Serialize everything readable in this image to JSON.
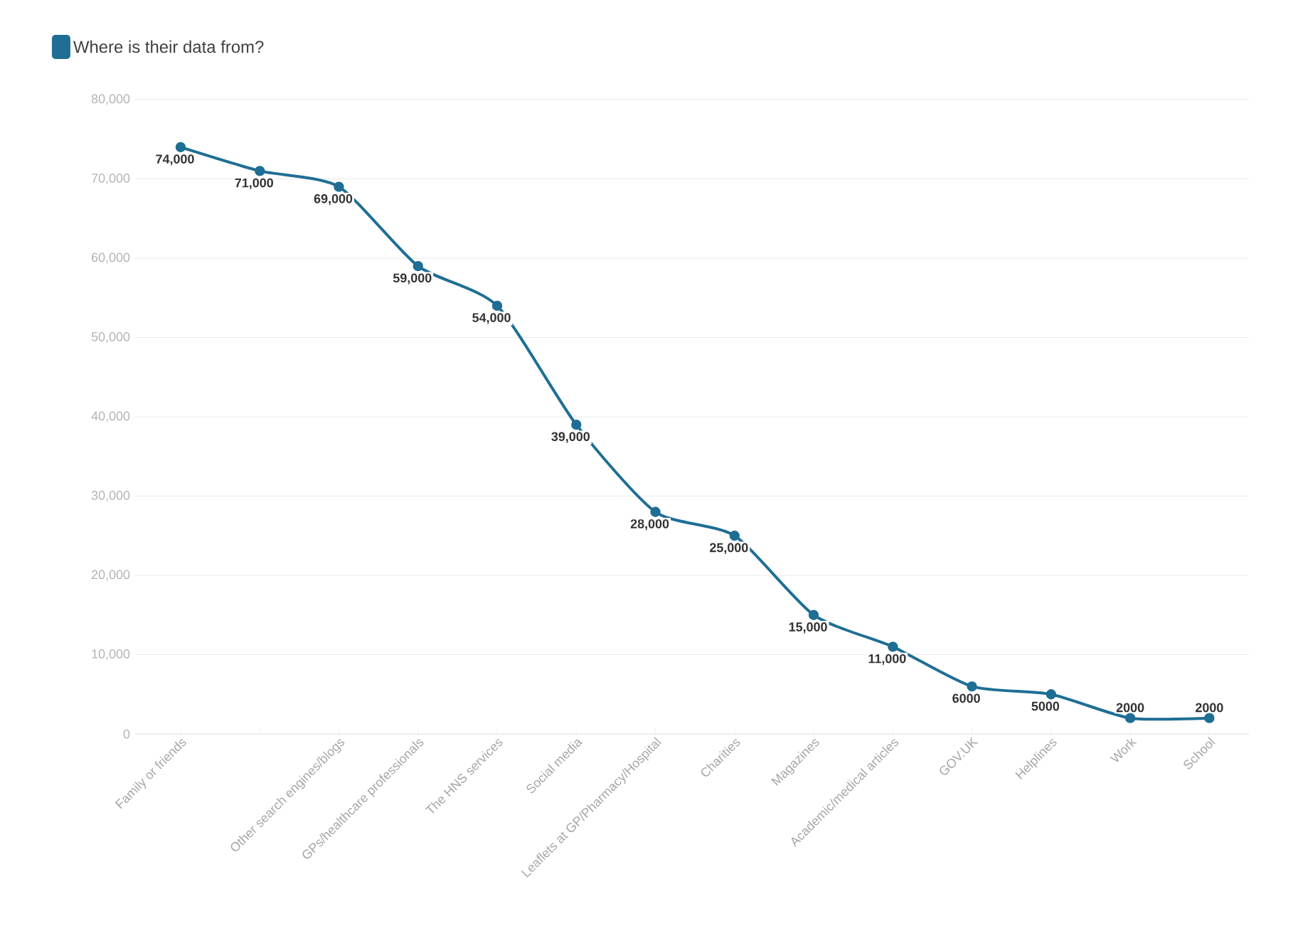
{
  "chart_data": {
    "type": "line",
    "categories": [
      "Family or friends",
      null,
      "Other search engines/blogs",
      "GPs/healthcare professionals",
      "The HNS services",
      "Social media",
      "Leaflets at GP/Pharmacy/Hospital",
      "Charities",
      "Magazines",
      "Academic/medical articles",
      "GOV.UK",
      "Helplines",
      "Work",
      "School"
    ],
    "series": [
      {
        "name": "Where is their data from?",
        "color": "#1f6e94",
        "values": [
          74000,
          71000,
          69000,
          59000,
          54000,
          39000,
          28000,
          25000,
          15000,
          11000,
          6000,
          5000,
          2000,
          2000
        ],
        "value_labels": [
          "74,000",
          "71,000",
          "69,000",
          "59,000",
          "54,000",
          "39,000",
          "28,000",
          "25,000",
          "15,000",
          "11,000",
          "6000",
          "5000",
          "2000",
          "2000"
        ]
      }
    ],
    "ylim": [
      0,
      80000
    ],
    "yticks": [
      {
        "value": 0,
        "label": "0"
      },
      {
        "value": 10000,
        "label": "10,000"
      },
      {
        "value": 20000,
        "label": "20,000"
      },
      {
        "value": 30000,
        "label": "30,000"
      },
      {
        "value": 40000,
        "label": "40,000"
      },
      {
        "value": 50000,
        "label": "50,000"
      },
      {
        "value": 60000,
        "label": "60,000"
      },
      {
        "value": 70000,
        "label": "70,000"
      },
      {
        "value": 80000,
        "label": "80,000"
      }
    ],
    "grid": "y",
    "legend": "top left",
    "marker": "circle",
    "line_style": "solid"
  }
}
